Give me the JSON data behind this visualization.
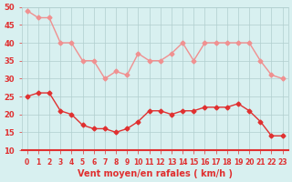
{
  "x": [
    0,
    1,
    2,
    3,
    4,
    5,
    6,
    7,
    8,
    9,
    10,
    11,
    12,
    13,
    14,
    15,
    16,
    17,
    18,
    19,
    20,
    21,
    22,
    23
  ],
  "wind_avg": [
    25,
    26,
    26,
    21,
    20,
    17,
    16,
    16,
    15,
    16,
    18,
    21,
    21,
    20,
    21,
    21,
    22,
    22,
    22,
    23,
    21,
    18,
    14,
    14
  ],
  "wind_gust": [
    49,
    47,
    47,
    40,
    40,
    35,
    35,
    30,
    32,
    31,
    37,
    35,
    35,
    37,
    40,
    35,
    40,
    40,
    40,
    40,
    40,
    35,
    31,
    30
  ],
  "bg_color": "#d8f0f0",
  "grid_color": "#b0cece",
  "avg_color": "#e03030",
  "gust_color": "#f09090",
  "xlabel": "Vent moyen/en rafales ( km/h )",
  "xlabel_color": "#e03030",
  "ylabel_color": "#e03030",
  "tick_color": "#e03030",
  "ylim_min": 10,
  "ylim_max": 50,
  "yticks": [
    10,
    15,
    20,
    25,
    30,
    35,
    40,
    45,
    50
  ]
}
